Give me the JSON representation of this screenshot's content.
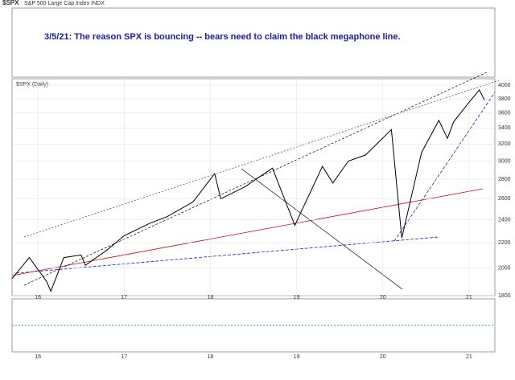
{
  "chart_data": {
    "type": "line",
    "title": "$SPX",
    "subtitle": "S&P 500 Large Cap Index INDX",
    "annotation": "3/5/21:  The reason SPX is bouncing -- bears need to claim the black megaphone line.",
    "x": [
      2015.7,
      2015.9,
      2016.1,
      2016.15,
      2016.3,
      2016.5,
      2016.55,
      2016.8,
      2017.0,
      2017.3,
      2017.5,
      2017.8,
      2018.05,
      2018.12,
      2018.4,
      2018.72,
      2018.98,
      2019.3,
      2019.42,
      2019.6,
      2019.8,
      2020.1,
      2020.22,
      2020.45,
      2020.65,
      2020.75,
      2020.82,
      2021.0,
      2021.12,
      2021.18
    ],
    "series": [
      {
        "name": "$SPX (Daily)",
        "color": "#000000",
        "values": [
          1920,
          2080,
          1900,
          1830,
          2080,
          2100,
          2020,
          2140,
          2260,
          2370,
          2430,
          2570,
          2860,
          2600,
          2720,
          2920,
          2350,
          2940,
          2760,
          3000,
          3070,
          3380,
          2240,
          3100,
          3500,
          3270,
          3480,
          3750,
          3930,
          3780
        ]
      }
    ],
    "xlim": [
      2015.7,
      2021.3
    ],
    "xticks": [
      {
        "value": 2016,
        "label": "16"
      },
      {
        "value": 2017,
        "label": "17"
      },
      {
        "value": 2018,
        "label": "18"
      },
      {
        "value": 2019,
        "label": "19"
      },
      {
        "value": 2020,
        "label": "20"
      },
      {
        "value": 2021,
        "label": "21"
      }
    ],
    "ylim": [
      1800,
      4100
    ],
    "yticks": [
      1800,
      2000,
      2200,
      2400,
      2600,
      2800,
      3000,
      3200,
      3400,
      3600,
      3800,
      4000
    ],
    "log_scale": true,
    "grid": true
  }
}
